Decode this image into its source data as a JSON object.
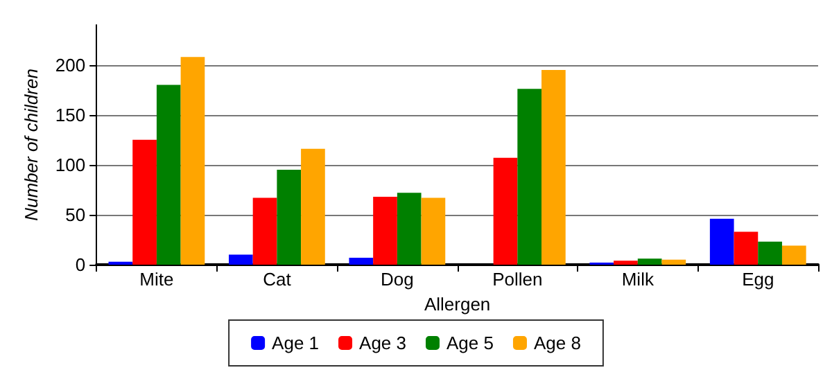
{
  "chart_data": {
    "type": "bar",
    "xlabel": "Allergen",
    "ylabel": "Number of children",
    "categories": [
      "Mite",
      "Cat",
      "Dog",
      "Pollen",
      "Milk",
      "Egg"
    ],
    "series": [
      {
        "name": "Age 1",
        "color": "#0000ff",
        "values": [
          3,
          10,
          7,
          0,
          2,
          46
        ]
      },
      {
        "name": "Age 3",
        "color": "#ff0000",
        "values": [
          125,
          67,
          68,
          107,
          4,
          33
        ]
      },
      {
        "name": "Age 5",
        "color": "#008000",
        "values": [
          180,
          95,
          72,
          176,
          6,
          23
        ]
      },
      {
        "name": "Age 8",
        "color": "#ffa500",
        "values": [
          208,
          116,
          67,
          195,
          5,
          19
        ]
      }
    ],
    "ylim": [
      0,
      240
    ],
    "yticks": [
      0,
      50,
      100,
      150,
      200
    ],
    "grid": "y",
    "legend": "bottom"
  }
}
